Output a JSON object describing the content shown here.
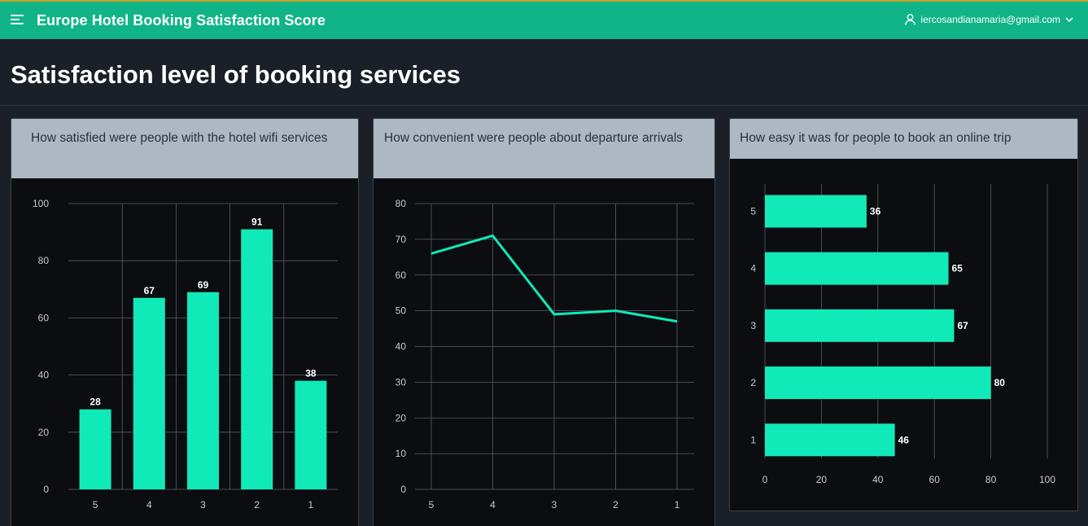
{
  "app": {
    "title": "Europe Hotel Booking Satisfaction Score"
  },
  "user": {
    "email": "iercosandianamaria@gmail.com",
    "icon": "user-icon"
  },
  "page": {
    "title": "Satisfaction level of booking services"
  },
  "colors": {
    "accent": "#10eab8",
    "topbar": "#10b487",
    "card_header": "#adb8c3"
  },
  "cards": [
    {
      "title": "How satisfied were people with the hotel wifi services"
    },
    {
      "title": "How convenient were people about departure arrivals"
    },
    {
      "title": "How easy it was for people to book an online trip"
    }
  ],
  "chart_data": [
    {
      "type": "bar",
      "categories": [
        "5",
        "4",
        "3",
        "2",
        "1"
      ],
      "values": [
        28,
        67,
        69,
        91,
        38
      ],
      "ylim": [
        0,
        100
      ],
      "yticks": [
        0,
        20,
        40,
        60,
        80,
        100
      ],
      "data_labels": true,
      "grid": true
    },
    {
      "type": "line",
      "categories": [
        "5",
        "4",
        "3",
        "2",
        "1"
      ],
      "values": [
        66,
        71,
        49,
        50,
        47
      ],
      "ylim": [
        0,
        80
      ],
      "yticks": [
        0,
        10,
        20,
        30,
        40,
        50,
        60,
        70,
        80
      ],
      "grid": true
    },
    {
      "type": "bar",
      "orientation": "horizontal",
      "categories": [
        "5",
        "4",
        "3",
        "2",
        "1"
      ],
      "values": [
        36,
        65,
        67,
        80,
        46
      ],
      "xlim": [
        0,
        100
      ],
      "xticks": [
        0,
        20,
        40,
        60,
        80,
        100
      ],
      "data_labels": true,
      "grid": true
    }
  ]
}
